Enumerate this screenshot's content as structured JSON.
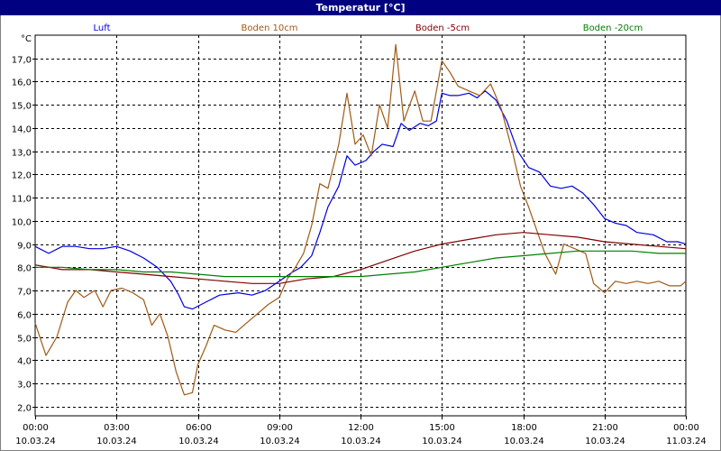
{
  "window": {
    "title": "Temperatur [°C]"
  },
  "chart_data": {
    "type": "line",
    "title": "Temperatur [°C]",
    "ylabel": "°C",
    "ylim": [
      1.6,
      18.0
    ],
    "yticks": [
      "2,0",
      "3,0",
      "4,0",
      "5,0",
      "6,0",
      "7,0",
      "8,0",
      "9,0",
      "10,0",
      "11,0",
      "12,0",
      "13,0",
      "14,0",
      "15,0",
      "16,0",
      "17,0"
    ],
    "ytick_values": [
      2,
      3,
      4,
      5,
      6,
      7,
      8,
      9,
      10,
      11,
      12,
      13,
      14,
      15,
      16,
      17
    ],
    "xlim": [
      0,
      24
    ],
    "xticks": [
      {
        "t": 0,
        "time": "00:00",
        "date": "10.03.24"
      },
      {
        "t": 3,
        "time": "03:00",
        "date": "10.03.24"
      },
      {
        "t": 6,
        "time": "06:00",
        "date": "10.03.24"
      },
      {
        "t": 9,
        "time": "09:00",
        "date": "10.03.24"
      },
      {
        "t": 12,
        "time": "12:00",
        "date": "10.03.24"
      },
      {
        "t": 15,
        "time": "15:00",
        "date": "10.03.24"
      },
      {
        "t": 18,
        "time": "18:00",
        "date": "10.03.24"
      },
      {
        "t": 21,
        "time": "21:00",
        "date": "10.03.24"
      },
      {
        "t": 24,
        "time": "00:00",
        "date": "11.03.24"
      }
    ],
    "grid": true,
    "legend_position": "top",
    "series": [
      {
        "name": "Luft",
        "color": "#0000e0",
        "points": [
          [
            0,
            8.9
          ],
          [
            0.5,
            8.6
          ],
          [
            1,
            8.9
          ],
          [
            1.5,
            8.9
          ],
          [
            2,
            8.8
          ],
          [
            2.5,
            8.8
          ],
          [
            3,
            8.9
          ],
          [
            3.5,
            8.7
          ],
          [
            4,
            8.4
          ],
          [
            4.5,
            8.0
          ],
          [
            5,
            7.4
          ],
          [
            5.3,
            6.8
          ],
          [
            5.5,
            6.3
          ],
          [
            5.8,
            6.2
          ],
          [
            6.3,
            6.5
          ],
          [
            6.8,
            6.8
          ],
          [
            7.5,
            6.9
          ],
          [
            8,
            6.8
          ],
          [
            8.5,
            7.0
          ],
          [
            9,
            7.4
          ],
          [
            9.5,
            7.8
          ],
          [
            9.8,
            8.0
          ],
          [
            10.2,
            8.5
          ],
          [
            10.5,
            9.5
          ],
          [
            10.8,
            10.6
          ],
          [
            11.2,
            11.5
          ],
          [
            11.5,
            12.8
          ],
          [
            11.8,
            12.4
          ],
          [
            12.2,
            12.6
          ],
          [
            12.5,
            13.0
          ],
          [
            12.8,
            13.3
          ],
          [
            13.2,
            13.2
          ],
          [
            13.5,
            14.2
          ],
          [
            13.8,
            13.9
          ],
          [
            14.2,
            14.2
          ],
          [
            14.5,
            14.1
          ],
          [
            14.8,
            14.3
          ],
          [
            15,
            15.5
          ],
          [
            15.3,
            15.4
          ],
          [
            15.6,
            15.4
          ],
          [
            16,
            15.5
          ],
          [
            16.3,
            15.3
          ],
          [
            16.6,
            15.6
          ],
          [
            17,
            15.2
          ],
          [
            17.4,
            14.3
          ],
          [
            17.8,
            13.0
          ],
          [
            18.2,
            12.3
          ],
          [
            18.6,
            12.1
          ],
          [
            19,
            11.5
          ],
          [
            19.4,
            11.4
          ],
          [
            19.8,
            11.5
          ],
          [
            20.2,
            11.2
          ],
          [
            20.6,
            10.7
          ],
          [
            21,
            10.1
          ],
          [
            21.4,
            9.9
          ],
          [
            21.8,
            9.8
          ],
          [
            22.2,
            9.5
          ],
          [
            22.8,
            9.4
          ],
          [
            23.3,
            9.1
          ],
          [
            23.7,
            9.1
          ],
          [
            24,
            9.0
          ]
        ]
      },
      {
        "name": "Boden 10cm",
        "color": "#a05a14",
        "points": [
          [
            0,
            5.6
          ],
          [
            0.4,
            4.2
          ],
          [
            0.8,
            5.0
          ],
          [
            1.2,
            6.5
          ],
          [
            1.5,
            7.0
          ],
          [
            1.8,
            6.7
          ],
          [
            2.2,
            7.0
          ],
          [
            2.5,
            6.3
          ],
          [
            2.8,
            7.0
          ],
          [
            3.2,
            7.1
          ],
          [
            3.6,
            6.9
          ],
          [
            4,
            6.6
          ],
          [
            4.3,
            5.5
          ],
          [
            4.6,
            6.0
          ],
          [
            4.9,
            5.0
          ],
          [
            5.2,
            3.5
          ],
          [
            5.5,
            2.5
          ],
          [
            5.8,
            2.6
          ],
          [
            6,
            3.8
          ],
          [
            6.3,
            4.6
          ],
          [
            6.6,
            5.5
          ],
          [
            7,
            5.3
          ],
          [
            7.4,
            5.2
          ],
          [
            7.8,
            5.6
          ],
          [
            8.2,
            6.0
          ],
          [
            8.6,
            6.4
          ],
          [
            9,
            6.7
          ],
          [
            9.3,
            7.5
          ],
          [
            9.6,
            8.0
          ],
          [
            9.9,
            8.6
          ],
          [
            10.2,
            9.8
          ],
          [
            10.5,
            11.6
          ],
          [
            10.8,
            11.4
          ],
          [
            11.2,
            13.3
          ],
          [
            11.5,
            15.5
          ],
          [
            11.8,
            13.3
          ],
          [
            12.1,
            13.7
          ],
          [
            12.4,
            12.8
          ],
          [
            12.7,
            15.0
          ],
          [
            13.0,
            14.0
          ],
          [
            13.3,
            17.6
          ],
          [
            13.6,
            14.3
          ],
          [
            14,
            15.6
          ],
          [
            14.3,
            14.3
          ],
          [
            14.6,
            14.3
          ],
          [
            15,
            16.9
          ],
          [
            15.3,
            16.4
          ],
          [
            15.6,
            15.8
          ],
          [
            16,
            15.6
          ],
          [
            16.4,
            15.4
          ],
          [
            16.8,
            15.9
          ],
          [
            17.2,
            14.8
          ],
          [
            17.6,
            13.0
          ],
          [
            17.9,
            11.5
          ],
          [
            18.2,
            10.6
          ],
          [
            18.5,
            9.6
          ],
          [
            18.8,
            8.6
          ],
          [
            19.2,
            7.7
          ],
          [
            19.5,
            9.0
          ],
          [
            19.9,
            8.8
          ],
          [
            20.3,
            8.6
          ],
          [
            20.6,
            7.3
          ],
          [
            21,
            6.9
          ],
          [
            21.4,
            7.4
          ],
          [
            21.8,
            7.3
          ],
          [
            22.2,
            7.4
          ],
          [
            22.6,
            7.3
          ],
          [
            23,
            7.4
          ],
          [
            23.4,
            7.2
          ],
          [
            23.8,
            7.2
          ],
          [
            24,
            7.4
          ]
        ]
      },
      {
        "name": "Boden -5cm",
        "color": "#800000",
        "points": [
          [
            0,
            8.1
          ],
          [
            1,
            7.9
          ],
          [
            2,
            7.9
          ],
          [
            3,
            7.8
          ],
          [
            4,
            7.7
          ],
          [
            5,
            7.6
          ],
          [
            6,
            7.5
          ],
          [
            7,
            7.4
          ],
          [
            8,
            7.3
          ],
          [
            9,
            7.3
          ],
          [
            10,
            7.5
          ],
          [
            11,
            7.6
          ],
          [
            12,
            7.9
          ],
          [
            13,
            8.3
          ],
          [
            14,
            8.7
          ],
          [
            15,
            9.0
          ],
          [
            16,
            9.2
          ],
          [
            17,
            9.4
          ],
          [
            18,
            9.5
          ],
          [
            19,
            9.4
          ],
          [
            20,
            9.3
          ],
          [
            21,
            9.1
          ],
          [
            22,
            9.0
          ],
          [
            23,
            8.9
          ],
          [
            24,
            8.8
          ]
        ]
      },
      {
        "name": "Boden -20cm",
        "color": "#008000",
        "points": [
          [
            0,
            8.0
          ],
          [
            1,
            8.0
          ],
          [
            2,
            7.9
          ],
          [
            3,
            7.9
          ],
          [
            4,
            7.8
          ],
          [
            5,
            7.8
          ],
          [
            6,
            7.7
          ],
          [
            7,
            7.6
          ],
          [
            8,
            7.6
          ],
          [
            9,
            7.6
          ],
          [
            10,
            7.6
          ],
          [
            11,
            7.6
          ],
          [
            12,
            7.6
          ],
          [
            13,
            7.7
          ],
          [
            14,
            7.8
          ],
          [
            15,
            8.0
          ],
          [
            16,
            8.2
          ],
          [
            17,
            8.4
          ],
          [
            18,
            8.5
          ],
          [
            19,
            8.6
          ],
          [
            20,
            8.7
          ],
          [
            21,
            8.7
          ],
          [
            22,
            8.7
          ],
          [
            23,
            8.6
          ],
          [
            24,
            8.6
          ]
        ]
      }
    ]
  }
}
